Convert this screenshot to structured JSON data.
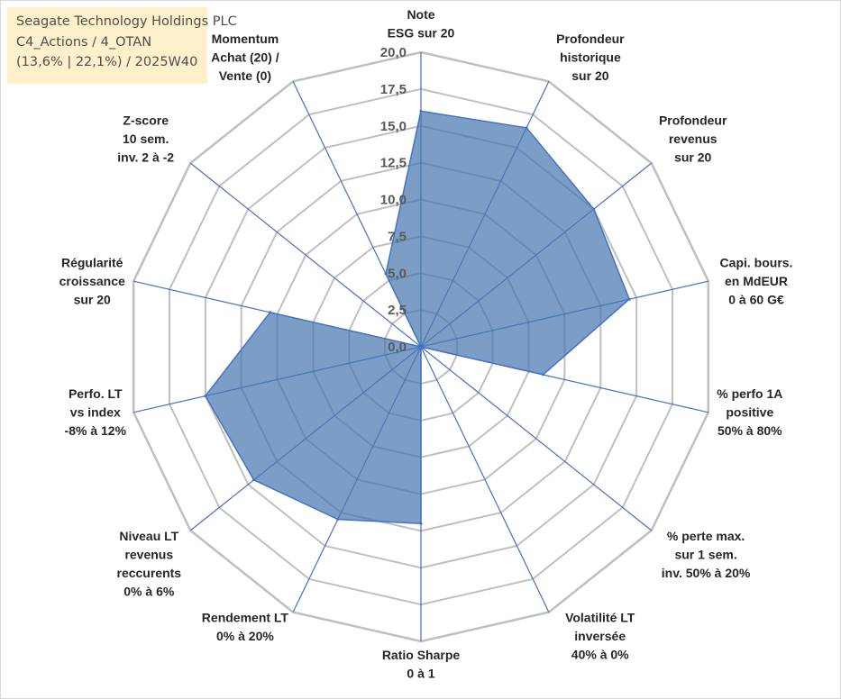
{
  "info_box": {
    "line1": "Seagate Technology Holdings PLC",
    "line2": "C4_Actions / 4_OTAN",
    "line3": "(13,6% | 22,1%) / 2025W40"
  },
  "colors": {
    "fill": "#4a78b0",
    "stroke": "#4472c4",
    "grid": "#bfbfbf",
    "spoke": "#4472c4",
    "info_bg": "#fdefc6"
  },
  "chart_data": {
    "type": "radar",
    "title": "",
    "rmin": 0,
    "rmax": 20,
    "ticks": [
      "0,0",
      "2,5",
      "5,0",
      "7,5",
      "10,0",
      "12,5",
      "15,0",
      "17,5",
      "20,0"
    ],
    "axes": [
      {
        "label": [
          "Note",
          "ESG sur 20"
        ],
        "value": 16.0
      },
      {
        "label": [
          "Profondeur",
          "historique",
          "sur 20"
        ],
        "value": 16.5
      },
      {
        "label": [
          "Profondeur",
          "revenus",
          "sur 20"
        ],
        "value": 15.0
      },
      {
        "label": [
          "Capi. bours.",
          "en MdEUR",
          "0 à 60 G€"
        ],
        "value": 14.5
      },
      {
        "label": [
          "% perfo 1A",
          "positive",
          "50% à 80%"
        ],
        "value": 8.5
      },
      {
        "label": [
          "% perte max.",
          "sur 1 sem.",
          "inv. 50% à 20%"
        ],
        "value": 0
      },
      {
        "label": [
          "Volatilité LT",
          "inversée",
          "40% à 0%"
        ],
        "value": 0
      },
      {
        "label": [
          "Ratio Sharpe",
          "0 à 1"
        ],
        "value": 12.0
      },
      {
        "label": [
          "Rendement LT",
          "0% à 20%"
        ],
        "value": 13.0
      },
      {
        "label": [
          "Niveau LT",
          "revenus",
          "reccurents",
          "0% à 6%"
        ],
        "value": 14.5
      },
      {
        "label": [
          "Perfo. LT",
          "vs index",
          "-8% à 12%"
        ],
        "value": 15.0
      },
      {
        "label": [
          "Régularité",
          "croissance",
          "sur 20"
        ],
        "value": 10.5
      },
      {
        "label": [
          "Z-score",
          "10 sem.",
          "inv. 2 à -2"
        ],
        "value": 0
      },
      {
        "label": [
          "Momentum",
          "Achat (20) /",
          "Vente (0)"
        ],
        "value": 5.5
      }
    ]
  }
}
